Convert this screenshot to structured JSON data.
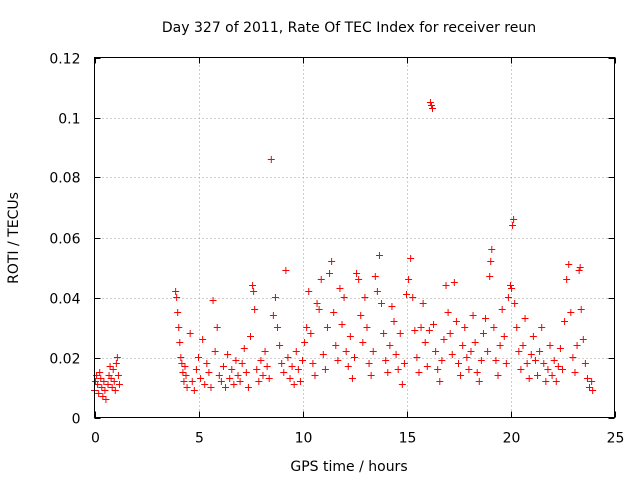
{
  "chart_data": {
    "type": "scatter",
    "title": "Day 327 of 2011, Rate Of TEC Index for receiver reun",
    "xlabel": "GPS time / hours",
    "ylabel": "ROTI / TECUs",
    "xlim": [
      0,
      25
    ],
    "ylim": [
      0,
      0.12
    ],
    "xticks": [
      0,
      5,
      10,
      15,
      20,
      25
    ],
    "xtick_labels": [
      "0",
      "5",
      "10",
      "15",
      "20",
      "25"
    ],
    "yticks": [
      0,
      0.02,
      0.04,
      0.06,
      0.08,
      0.1,
      0.12
    ],
    "ytick_labels": [
      "0",
      "0.02",
      "0.04",
      "0.06",
      "0.08",
      "0.1",
      "0.12"
    ],
    "grid": true,
    "marker": "+",
    "color": "#ff0000",
    "series": [
      {
        "name": "ROTI",
        "points": [
          [
            0.0,
            0.009
          ],
          [
            0.05,
            0.012
          ],
          [
            0.1,
            0.014
          ],
          [
            0.15,
            0.011
          ],
          [
            0.2,
            0.008
          ],
          [
            0.25,
            0.015
          ],
          [
            0.3,
            0.013
          ],
          [
            0.35,
            0.01
          ],
          [
            0.4,
            0.007
          ],
          [
            0.45,
            0.012
          ],
          [
            0.5,
            0.009
          ],
          [
            0.55,
            0.006
          ],
          [
            0.65,
            0.011
          ],
          [
            0.7,
            0.014
          ],
          [
            0.75,
            0.017
          ],
          [
            0.8,
            0.013
          ],
          [
            0.85,
            0.01
          ],
          [
            0.9,
            0.016
          ],
          [
            0.95,
            0.012
          ],
          [
            1.0,
            0.009
          ],
          [
            1.05,
            0.018
          ],
          [
            1.1,
            0.02
          ],
          [
            1.15,
            0.014
          ],
          [
            1.2,
            0.011
          ],
          [
            3.9,
            0.042
          ],
          [
            3.95,
            0.04
          ],
          [
            4.0,
            0.035
          ],
          [
            4.05,
            0.03
          ],
          [
            4.1,
            0.025
          ],
          [
            4.15,
            0.02
          ],
          [
            4.2,
            0.018
          ],
          [
            4.25,
            0.015
          ],
          [
            4.3,
            0.012
          ],
          [
            4.35,
            0.017
          ],
          [
            4.4,
            0.014
          ],
          [
            4.45,
            0.01
          ],
          [
            4.6,
            0.028
          ],
          [
            4.7,
            0.012
          ],
          [
            4.8,
            0.009
          ],
          [
            4.9,
            0.016
          ],
          [
            5.0,
            0.02
          ],
          [
            5.1,
            0.013
          ],
          [
            5.2,
            0.026
          ],
          [
            5.3,
            0.011
          ],
          [
            5.4,
            0.018
          ],
          [
            5.5,
            0.015
          ],
          [
            5.6,
            0.01
          ],
          [
            5.7,
            0.039
          ],
          [
            5.8,
            0.022
          ],
          [
            5.9,
            0.03
          ],
          [
            6.0,
            0.014
          ],
          [
            6.1,
            0.012
          ],
          [
            6.2,
            0.017
          ],
          [
            6.3,
            0.01
          ],
          [
            6.4,
            0.021
          ],
          [
            6.5,
            0.013
          ],
          [
            6.6,
            0.016
          ],
          [
            6.7,
            0.011
          ],
          [
            6.8,
            0.019
          ],
          [
            6.9,
            0.014
          ],
          [
            7.0,
            0.012
          ],
          [
            7.1,
            0.018
          ],
          [
            7.2,
            0.023
          ],
          [
            7.3,
            0.015
          ],
          [
            7.4,
            0.01
          ],
          [
            7.5,
            0.027
          ],
          [
            7.6,
            0.044
          ],
          [
            7.65,
            0.042
          ],
          [
            7.7,
            0.036
          ],
          [
            7.8,
            0.016
          ],
          [
            7.9,
            0.012
          ],
          [
            8.0,
            0.019
          ],
          [
            8.1,
            0.014
          ],
          [
            8.2,
            0.022
          ],
          [
            8.3,
            0.017
          ],
          [
            8.4,
            0.013
          ],
          [
            8.5,
            0.086
          ],
          [
            8.6,
            0.034
          ],
          [
            8.7,
            0.04
          ],
          [
            8.8,
            0.03
          ],
          [
            8.9,
            0.024
          ],
          [
            9.0,
            0.018
          ],
          [
            9.1,
            0.015
          ],
          [
            9.2,
            0.049
          ],
          [
            9.3,
            0.02
          ],
          [
            9.4,
            0.013
          ],
          [
            9.5,
            0.017
          ],
          [
            9.6,
            0.011
          ],
          [
            9.7,
            0.022
          ],
          [
            9.8,
            0.016
          ],
          [
            9.9,
            0.012
          ],
          [
            10.0,
            0.019
          ],
          [
            10.1,
            0.025
          ],
          [
            10.2,
            0.03
          ],
          [
            10.3,
            0.042
          ],
          [
            10.4,
            0.028
          ],
          [
            10.5,
            0.018
          ],
          [
            10.6,
            0.014
          ],
          [
            10.7,
            0.038
          ],
          [
            10.8,
            0.036
          ],
          [
            10.9,
            0.046
          ],
          [
            11.0,
            0.021
          ],
          [
            11.1,
            0.016
          ],
          [
            11.2,
            0.03
          ],
          [
            11.3,
            0.048
          ],
          [
            11.4,
            0.052
          ],
          [
            11.5,
            0.035
          ],
          [
            11.6,
            0.024
          ],
          [
            11.7,
            0.019
          ],
          [
            11.8,
            0.043
          ],
          [
            11.9,
            0.031
          ],
          [
            12.0,
            0.04
          ],
          [
            12.1,
            0.022
          ],
          [
            12.2,
            0.017
          ],
          [
            12.3,
            0.027
          ],
          [
            12.4,
            0.013
          ],
          [
            12.5,
            0.02
          ],
          [
            12.6,
            0.048
          ],
          [
            12.7,
            0.046
          ],
          [
            12.8,
            0.034
          ],
          [
            12.9,
            0.025
          ],
          [
            13.0,
            0.04
          ],
          [
            13.1,
            0.03
          ],
          [
            13.2,
            0.018
          ],
          [
            13.3,
            0.014
          ],
          [
            13.4,
            0.022
          ],
          [
            13.5,
            0.047
          ],
          [
            13.6,
            0.042
          ],
          [
            13.7,
            0.054
          ],
          [
            13.8,
            0.038
          ],
          [
            13.9,
            0.028
          ],
          [
            14.0,
            0.019
          ],
          [
            14.1,
            0.015
          ],
          [
            14.2,
            0.024
          ],
          [
            14.3,
            0.037
          ],
          [
            14.4,
            0.032
          ],
          [
            14.5,
            0.021
          ],
          [
            14.6,
            0.016
          ],
          [
            14.7,
            0.028
          ],
          [
            14.8,
            0.011
          ],
          [
            14.9,
            0.018
          ],
          [
            15.0,
            0.041
          ],
          [
            15.1,
            0.046
          ],
          [
            15.2,
            0.053
          ],
          [
            15.3,
            0.04
          ],
          [
            15.4,
            0.029
          ],
          [
            15.5,
            0.02
          ],
          [
            15.6,
            0.015
          ],
          [
            15.7,
            0.03
          ],
          [
            15.8,
            0.038
          ],
          [
            15.9,
            0.025
          ],
          [
            16.0,
            0.017
          ],
          [
            16.1,
            0.029
          ],
          [
            16.15,
            0.105
          ],
          [
            16.2,
            0.104
          ],
          [
            16.25,
            0.103
          ],
          [
            16.3,
            0.031
          ],
          [
            16.4,
            0.022
          ],
          [
            16.5,
            0.016
          ],
          [
            16.6,
            0.012
          ],
          [
            16.7,
            0.019
          ],
          [
            16.8,
            0.026
          ],
          [
            16.9,
            0.044
          ],
          [
            17.0,
            0.035
          ],
          [
            17.1,
            0.028
          ],
          [
            17.2,
            0.021
          ],
          [
            17.3,
            0.045
          ],
          [
            17.4,
            0.032
          ],
          [
            17.5,
            0.018
          ],
          [
            17.6,
            0.014
          ],
          [
            17.7,
            0.024
          ],
          [
            17.8,
            0.03
          ],
          [
            17.9,
            0.02
          ],
          [
            18.0,
            0.016
          ],
          [
            18.1,
            0.022
          ],
          [
            18.2,
            0.034
          ],
          [
            18.3,
            0.025
          ],
          [
            18.4,
            0.015
          ],
          [
            18.5,
            0.012
          ],
          [
            18.6,
            0.019
          ],
          [
            18.7,
            0.028
          ],
          [
            18.8,
            0.033
          ],
          [
            18.9,
            0.022
          ],
          [
            19.0,
            0.047
          ],
          [
            19.05,
            0.052
          ],
          [
            19.1,
            0.056
          ],
          [
            19.2,
            0.03
          ],
          [
            19.3,
            0.019
          ],
          [
            19.4,
            0.014
          ],
          [
            19.5,
            0.024
          ],
          [
            19.6,
            0.036
          ],
          [
            19.7,
            0.027
          ],
          [
            19.8,
            0.018
          ],
          [
            19.9,
            0.04
          ],
          [
            20.0,
            0.044
          ],
          [
            20.05,
            0.043
          ],
          [
            20.1,
            0.064
          ],
          [
            20.15,
            0.066
          ],
          [
            20.2,
            0.038
          ],
          [
            20.3,
            0.03
          ],
          [
            20.4,
            0.022
          ],
          [
            20.5,
            0.016
          ],
          [
            20.6,
            0.024
          ],
          [
            20.7,
            0.033
          ],
          [
            20.8,
            0.018
          ],
          [
            20.9,
            0.013
          ],
          [
            21.0,
            0.021
          ],
          [
            21.1,
            0.027
          ],
          [
            21.2,
            0.019
          ],
          [
            21.3,
            0.014
          ],
          [
            21.4,
            0.022
          ],
          [
            21.5,
            0.03
          ],
          [
            21.6,
            0.018
          ],
          [
            21.7,
            0.012
          ],
          [
            21.8,
            0.016
          ],
          [
            21.9,
            0.024
          ],
          [
            22.0,
            0.014
          ],
          [
            22.1,
            0.019
          ],
          [
            22.2,
            0.012
          ],
          [
            22.3,
            0.017
          ],
          [
            22.4,
            0.023
          ],
          [
            22.5,
            0.016
          ],
          [
            22.6,
            0.032
          ],
          [
            22.7,
            0.046
          ],
          [
            22.8,
            0.051
          ],
          [
            22.9,
            0.035
          ],
          [
            23.0,
            0.02
          ],
          [
            23.1,
            0.015
          ],
          [
            23.2,
            0.024
          ],
          [
            23.3,
            0.049
          ],
          [
            23.35,
            0.05
          ],
          [
            23.4,
            0.036
          ],
          [
            23.5,
            0.026
          ],
          [
            23.6,
            0.018
          ],
          [
            23.7,
            0.013
          ],
          [
            23.8,
            0.01
          ],
          [
            23.9,
            0.012
          ],
          [
            23.95,
            0.009
          ]
        ]
      }
    ]
  }
}
